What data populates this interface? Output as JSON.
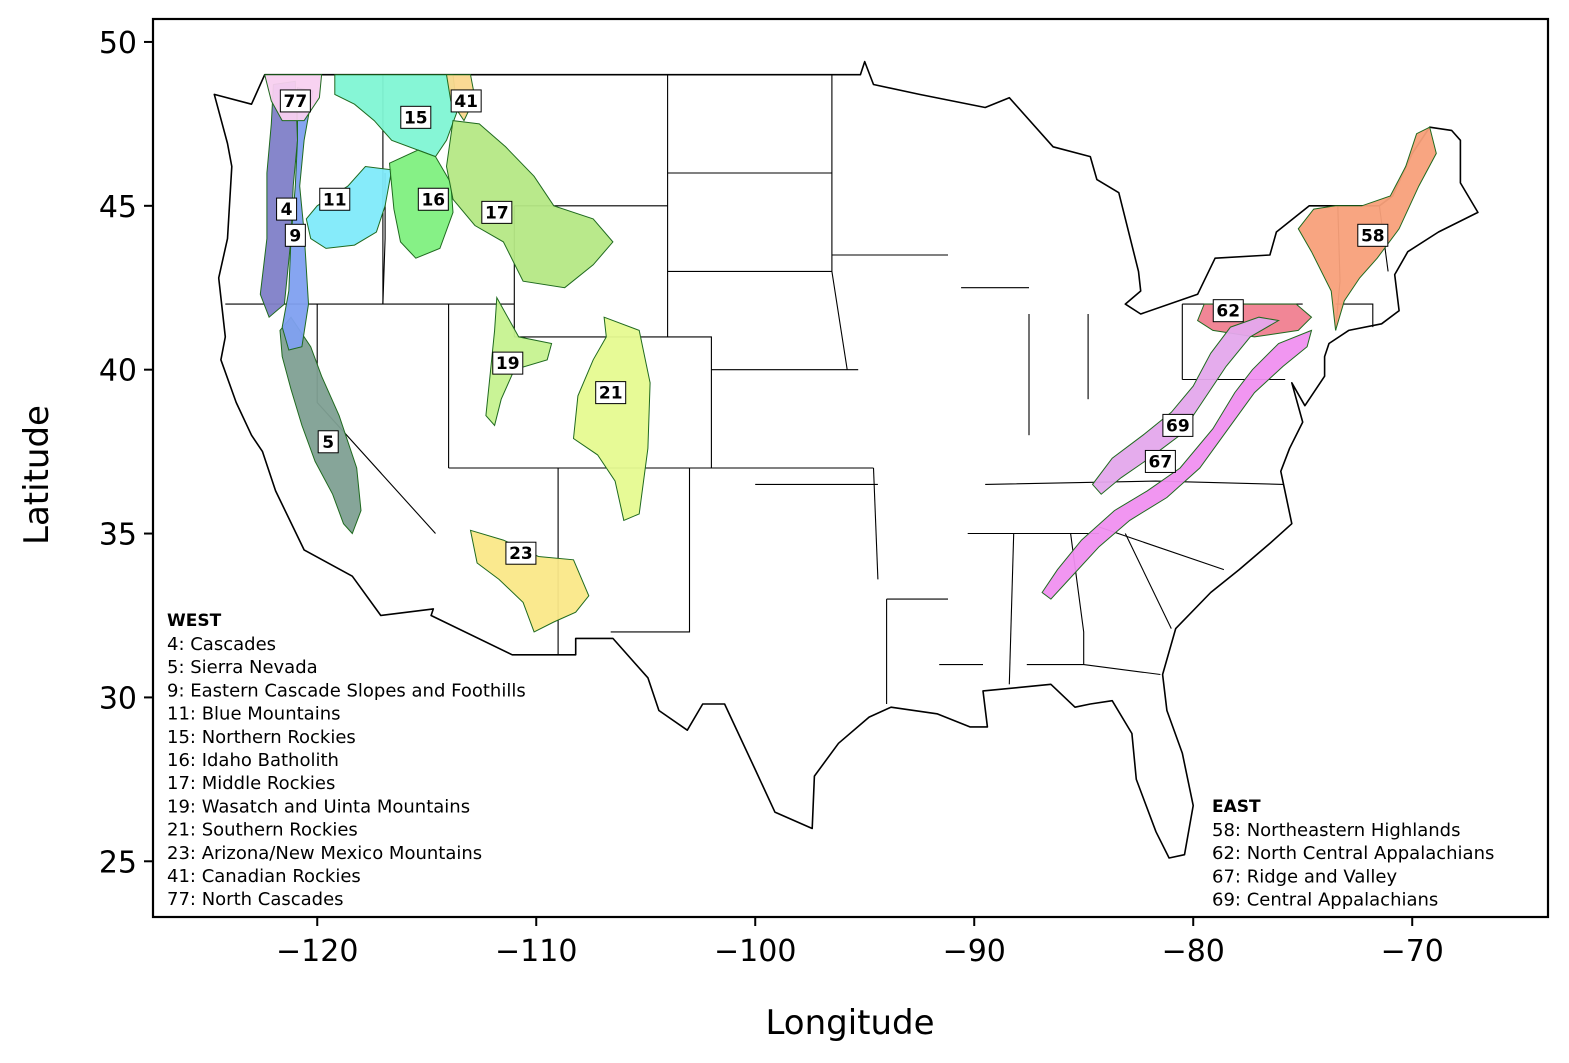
{
  "chart_data": {
    "type": "map",
    "xlabel": "Longitude",
    "ylabel": "Latitude",
    "xlim": [
      -127.5,
      -63.8
    ],
    "ylim": [
      23.3,
      50.7
    ],
    "xticks": [
      -120,
      -110,
      -100,
      -90,
      -80,
      -70
    ],
    "yticks": [
      25,
      30,
      35,
      40,
      45,
      50
    ],
    "xtick_labels": [
      "−120",
      "−110",
      "−100",
      "−90",
      "−80",
      "−70"
    ],
    "ytick_labels": [
      "25",
      "30",
      "35",
      "40",
      "45",
      "50"
    ],
    "grid": false,
    "basemap": "Continental US state boundaries with EPA Level III ecoregion outlines",
    "legend_west": {
      "heading": "WEST",
      "items": [
        "4: Cascades",
        "5: Sierra Nevada",
        "9: Eastern Cascade Slopes and Foothills",
        "11: Blue Mountains",
        "15: Northern Rockies",
        "16: Idaho Batholith",
        "17: Middle Rockies",
        "19: Wasatch and Uinta Mountains",
        "21: Southern Rockies",
        "23: Arizona/New Mexico Mountains",
        "41: Canadian Rockies",
        "77: North Cascades"
      ]
    },
    "legend_east": {
      "heading": "EAST",
      "items": [
        "58: Northeastern Highlands",
        "62: North Central Appalachians",
        "67: Ridge and Valley",
        "69: Central Appalachians"
      ]
    },
    "regions": [
      {
        "id": "4",
        "label": "4",
        "lon": -121.4,
        "lat": 44.9,
        "color": "#7f7fc8",
        "polygon": [
          [
            -122.0,
            48.7
          ],
          [
            -121.0,
            48.8
          ],
          [
            -120.9,
            47.0
          ],
          [
            -121.1,
            45.6
          ],
          [
            -121.2,
            44.0
          ],
          [
            -121.5,
            42.0
          ],
          [
            -122.2,
            41.6
          ],
          [
            -122.6,
            42.3
          ],
          [
            -122.3,
            44.0
          ],
          [
            -122.3,
            46.0
          ],
          [
            -122.1,
            47.5
          ]
        ]
      },
      {
        "id": "5",
        "label": "5",
        "lon": -119.5,
        "lat": 37.8,
        "color": "#7fa094",
        "polygon": [
          [
            -121.7,
            41.2
          ],
          [
            -121.2,
            41.6
          ],
          [
            -120.3,
            40.7
          ],
          [
            -119.8,
            39.8
          ],
          [
            -119.0,
            38.6
          ],
          [
            -118.2,
            37.0
          ],
          [
            -118.0,
            35.7
          ],
          [
            -118.4,
            35.0
          ],
          [
            -118.8,
            35.3
          ],
          [
            -119.3,
            36.2
          ],
          [
            -120.1,
            37.2
          ],
          [
            -120.7,
            38.3
          ],
          [
            -121.2,
            39.4
          ],
          [
            -121.6,
            40.4
          ]
        ]
      },
      {
        "id": "9",
        "label": "9",
        "lon": -121.0,
        "lat": 44.1,
        "color": "#7fa0f0",
        "polygon": [
          [
            -120.9,
            48.6
          ],
          [
            -120.2,
            48.5
          ],
          [
            -120.6,
            47.0
          ],
          [
            -120.8,
            45.6
          ],
          [
            -120.6,
            44.2
          ],
          [
            -120.4,
            42.0
          ],
          [
            -120.7,
            40.7
          ],
          [
            -121.3,
            40.6
          ],
          [
            -121.6,
            41.3
          ],
          [
            -121.3,
            42.4
          ],
          [
            -121.2,
            44.0
          ],
          [
            -121.0,
            45.6
          ],
          [
            -120.9,
            47.0
          ]
        ]
      },
      {
        "id": "11",
        "label": "11",
        "lon": -119.2,
        "lat": 45.2,
        "color": "#80eafa",
        "polygon": [
          [
            -120.5,
            44.6
          ],
          [
            -120.0,
            45.0
          ],
          [
            -118.6,
            45.6
          ],
          [
            -117.8,
            46.2
          ],
          [
            -116.6,
            46.1
          ],
          [
            -116.9,
            45.0
          ],
          [
            -117.3,
            44.2
          ],
          [
            -118.3,
            43.8
          ],
          [
            -119.6,
            43.7
          ],
          [
            -120.3,
            44.0
          ]
        ]
      },
      {
        "id": "15",
        "label": "15",
        "lon": -115.5,
        "lat": 47.7,
        "color": "#80f5d4",
        "polygon": [
          [
            -119.2,
            49.0
          ],
          [
            -113.8,
            49.0
          ],
          [
            -113.6,
            47.9
          ],
          [
            -114.1,
            47.0
          ],
          [
            -114.6,
            46.5
          ],
          [
            -115.4,
            46.7
          ],
          [
            -116.6,
            47.0
          ],
          [
            -117.4,
            47.6
          ],
          [
            -118.3,
            48.1
          ],
          [
            -119.2,
            48.4
          ]
        ]
      },
      {
        "id": "16",
        "label": "16",
        "lon": -114.7,
        "lat": 45.2,
        "color": "#80f080",
        "polygon": [
          [
            -116.7,
            46.3
          ],
          [
            -115.4,
            46.7
          ],
          [
            -114.6,
            46.5
          ],
          [
            -113.9,
            45.7
          ],
          [
            -113.8,
            44.8
          ],
          [
            -114.4,
            43.7
          ],
          [
            -115.5,
            43.4
          ],
          [
            -116.2,
            43.9
          ],
          [
            -116.5,
            44.9
          ]
        ]
      },
      {
        "id": "17",
        "label": "17",
        "lon": -111.8,
        "lat": 44.8,
        "color": "#b5e885",
        "polygon": [
          [
            -113.8,
            47.6
          ],
          [
            -112.6,
            47.5
          ],
          [
            -111.4,
            46.8
          ],
          [
            -110.1,
            45.9
          ],
          [
            -109.2,
            45.0
          ],
          [
            -107.4,
            44.6
          ],
          [
            -106.5,
            43.9
          ],
          [
            -107.4,
            43.2
          ],
          [
            -108.7,
            42.5
          ],
          [
            -110.6,
            42.7
          ],
          [
            -111.5,
            43.9
          ],
          [
            -112.8,
            44.4
          ],
          [
            -113.8,
            45.2
          ],
          [
            -114.1,
            46.2
          ]
        ]
      },
      {
        "id": "19",
        "label": "19",
        "lon": -111.3,
        "lat": 40.2,
        "color": "#c6f290",
        "polygon": [
          [
            -111.8,
            42.2
          ],
          [
            -110.8,
            41.0
          ],
          [
            -109.3,
            40.8
          ],
          [
            -109.5,
            40.3
          ],
          [
            -111.0,
            40.0
          ],
          [
            -111.6,
            39.1
          ],
          [
            -111.9,
            38.3
          ],
          [
            -112.3,
            38.6
          ],
          [
            -112.1,
            39.9
          ],
          [
            -111.9,
            41.2
          ]
        ]
      },
      {
        "id": "21",
        "label": "21",
        "lon": -106.6,
        "lat": 39.3,
        "color": "#e6fa90",
        "polygon": [
          [
            -106.9,
            41.6
          ],
          [
            -105.3,
            41.2
          ],
          [
            -104.8,
            39.6
          ],
          [
            -104.9,
            37.6
          ],
          [
            -105.3,
            35.6
          ],
          [
            -106.0,
            35.4
          ],
          [
            -106.4,
            36.6
          ],
          [
            -107.2,
            37.4
          ],
          [
            -108.3,
            37.9
          ],
          [
            -108.1,
            39.2
          ],
          [
            -107.4,
            40.3
          ],
          [
            -106.8,
            41.0
          ]
        ]
      },
      {
        "id": "23",
        "label": "23",
        "lon": -110.7,
        "lat": 34.4,
        "color": "#fae888",
        "polygon": [
          [
            -113.0,
            35.1
          ],
          [
            -111.5,
            34.8
          ],
          [
            -109.9,
            34.3
          ],
          [
            -108.3,
            34.2
          ],
          [
            -107.6,
            33.1
          ],
          [
            -108.2,
            32.6
          ],
          [
            -109.2,
            32.3
          ],
          [
            -110.1,
            32.0
          ],
          [
            -110.6,
            32.9
          ],
          [
            -111.7,
            33.6
          ],
          [
            -112.7,
            34.1
          ]
        ]
      },
      {
        "id": "41",
        "label": "41",
        "lon": -113.2,
        "lat": 48.2,
        "color": "#fbd88e",
        "polygon": [
          [
            -114.1,
            49.0
          ],
          [
            -113.0,
            49.0
          ],
          [
            -112.8,
            48.3
          ],
          [
            -113.3,
            47.6
          ],
          [
            -113.9,
            48.2
          ]
        ]
      },
      {
        "id": "77",
        "label": "77",
        "lon": -121.0,
        "lat": 48.2,
        "color": "#f8d0f0",
        "polygon": [
          [
            -122.4,
            49.0
          ],
          [
            -119.8,
            49.0
          ],
          [
            -119.9,
            48.3
          ],
          [
            -120.6,
            47.6
          ],
          [
            -121.6,
            47.6
          ],
          [
            -122.1,
            48.2
          ]
        ]
      },
      {
        "id": "58",
        "label": "58",
        "lon": -71.8,
        "lat": 44.1,
        "color": "#f8a07a",
        "polygon": [
          [
            -69.2,
            47.4
          ],
          [
            -68.9,
            46.6
          ],
          [
            -69.7,
            45.6
          ],
          [
            -70.6,
            44.3
          ],
          [
            -71.6,
            43.4
          ],
          [
            -72.4,
            42.8
          ],
          [
            -73.1,
            42.1
          ],
          [
            -73.5,
            41.2
          ],
          [
            -73.7,
            42.4
          ],
          [
            -74.6,
            43.6
          ],
          [
            -75.2,
            44.3
          ],
          [
            -74.5,
            44.9
          ],
          [
            -73.5,
            45.0
          ],
          [
            -72.3,
            45.0
          ],
          [
            -71.0,
            45.3
          ],
          [
            -70.3,
            46.2
          ],
          [
            -69.8,
            47.2
          ]
        ]
      },
      {
        "id": "62",
        "label": "62",
        "lon": -78.4,
        "lat": 41.8,
        "color": "#f08090",
        "polygon": [
          [
            -79.5,
            42.0
          ],
          [
            -75.3,
            42.0
          ],
          [
            -74.6,
            41.6
          ],
          [
            -75.2,
            41.2
          ],
          [
            -77.2,
            41.0
          ],
          [
            -79.1,
            41.2
          ],
          [
            -79.8,
            41.5
          ]
        ]
      },
      {
        "id": "67",
        "label": "67",
        "lon": -81.5,
        "lat": 37.2,
        "color": "#f090f0",
        "polygon": [
          [
            -74.6,
            41.2
          ],
          [
            -76.1,
            40.8
          ],
          [
            -77.3,
            40.0
          ],
          [
            -78.1,
            39.3
          ],
          [
            -79.1,
            38.2
          ],
          [
            -80.6,
            37.0
          ],
          [
            -82.1,
            36.3
          ],
          [
            -83.6,
            35.7
          ],
          [
            -85.1,
            34.8
          ],
          [
            -86.2,
            33.9
          ],
          [
            -86.9,
            33.2
          ],
          [
            -86.5,
            33.0
          ],
          [
            -85.4,
            33.8
          ],
          [
            -84.3,
            34.6
          ],
          [
            -82.9,
            35.4
          ],
          [
            -81.2,
            36.1
          ],
          [
            -79.7,
            37.0
          ],
          [
            -78.4,
            38.2
          ],
          [
            -77.2,
            39.3
          ],
          [
            -75.9,
            40.1
          ],
          [
            -74.8,
            40.7
          ]
        ]
      },
      {
        "id": "69",
        "label": "69",
        "lon": -80.7,
        "lat": 38.3,
        "color": "#e4a8ec",
        "polygon": [
          [
            -76.1,
            41.5
          ],
          [
            -77.4,
            41.0
          ],
          [
            -78.5,
            40.1
          ],
          [
            -79.4,
            39.2
          ],
          [
            -80.6,
            38.0
          ],
          [
            -82.0,
            37.3
          ],
          [
            -83.3,
            36.7
          ],
          [
            -84.2,
            36.2
          ],
          [
            -84.6,
            36.5
          ],
          [
            -83.7,
            37.3
          ],
          [
            -82.3,
            38.0
          ],
          [
            -81.0,
            38.7
          ],
          [
            -80.0,
            39.5
          ],
          [
            -79.2,
            40.5
          ],
          [
            -78.3,
            41.3
          ],
          [
            -77.0,
            41.6
          ]
        ]
      }
    ],
    "us_outline": [
      [
        -124.7,
        48.4
      ],
      [
        -123.0,
        48.1
      ],
      [
        -122.4,
        49.0
      ],
      [
        -95.2,
        49.0
      ],
      [
        -95.0,
        49.4
      ],
      [
        -94.6,
        48.7
      ],
      [
        -92.5,
        48.4
      ],
      [
        -89.5,
        48.0
      ],
      [
        -88.4,
        48.3
      ],
      [
        -86.4,
        46.8
      ],
      [
        -84.7,
        46.5
      ],
      [
        -84.4,
        45.8
      ],
      [
        -83.4,
        45.4
      ],
      [
        -82.5,
        43.0
      ],
      [
        -82.4,
        42.4
      ],
      [
        -83.1,
        42.0
      ],
      [
        -82.4,
        41.7
      ],
      [
        -79.8,
        42.3
      ],
      [
        -79.0,
        43.4
      ],
      [
        -76.5,
        43.5
      ],
      [
        -76.2,
        44.2
      ],
      [
        -74.7,
        45.0
      ],
      [
        -71.5,
        45.0
      ],
      [
        -70.9,
        45.3
      ],
      [
        -70.0,
        46.6
      ],
      [
        -69.2,
        47.4
      ],
      [
        -68.2,
        47.3
      ],
      [
        -67.8,
        47.0
      ],
      [
        -67.8,
        45.7
      ],
      [
        -67.0,
        44.8
      ],
      [
        -68.8,
        44.2
      ],
      [
        -70.2,
        43.6
      ],
      [
        -70.8,
        42.9
      ],
      [
        -70.6,
        41.8
      ],
      [
        -71.4,
        41.4
      ],
      [
        -72.9,
        41.2
      ],
      [
        -73.8,
        40.8
      ],
      [
        -74.0,
        40.4
      ],
      [
        -74.0,
        39.8
      ],
      [
        -74.9,
        38.9
      ],
      [
        -75.5,
        39.6
      ],
      [
        -75.0,
        38.4
      ],
      [
        -75.6,
        37.6
      ],
      [
        -76.0,
        36.9
      ],
      [
        -75.5,
        35.3
      ],
      [
        -76.5,
        34.7
      ],
      [
        -77.9,
        33.9
      ],
      [
        -79.2,
        33.2
      ],
      [
        -80.8,
        32.1
      ],
      [
        -81.4,
        30.7
      ],
      [
        -81.2,
        29.6
      ],
      [
        -80.5,
        28.3
      ],
      [
        -80.0,
        26.7
      ],
      [
        -80.4,
        25.2
      ],
      [
        -81.1,
        25.1
      ],
      [
        -81.7,
        25.9
      ],
      [
        -82.6,
        27.5
      ],
      [
        -82.8,
        28.9
      ],
      [
        -83.7,
        29.9
      ],
      [
        -84.7,
        29.8
      ],
      [
        -85.4,
        29.7
      ],
      [
        -86.5,
        30.4
      ],
      [
        -88.0,
        30.3
      ],
      [
        -89.6,
        30.2
      ],
      [
        -89.4,
        29.1
      ],
      [
        -90.2,
        29.1
      ],
      [
        -91.7,
        29.5
      ],
      [
        -93.8,
        29.7
      ],
      [
        -94.8,
        29.4
      ],
      [
        -96.2,
        28.6
      ],
      [
        -97.3,
        27.6
      ],
      [
        -97.4,
        26.0
      ],
      [
        -99.1,
        26.5
      ],
      [
        -100.0,
        27.8
      ],
      [
        -101.4,
        29.8
      ],
      [
        -102.4,
        29.8
      ],
      [
        -103.1,
        29.0
      ],
      [
        -104.4,
        29.6
      ],
      [
        -104.9,
        30.6
      ],
      [
        -106.5,
        31.8
      ],
      [
        -108.2,
        31.8
      ],
      [
        -108.2,
        31.3
      ],
      [
        -111.1,
        31.3
      ],
      [
        -114.8,
        32.5
      ],
      [
        -114.7,
        32.7
      ],
      [
        -117.1,
        32.5
      ],
      [
        -118.4,
        33.7
      ],
      [
        -120.6,
        34.5
      ],
      [
        -121.9,
        36.3
      ],
      [
        -122.5,
        37.5
      ],
      [
        -123.0,
        38.0
      ],
      [
        -123.7,
        39.0
      ],
      [
        -124.4,
        40.3
      ],
      [
        -124.2,
        41.0
      ],
      [
        -124.5,
        42.8
      ],
      [
        -124.1,
        44.0
      ],
      [
        -123.9,
        46.2
      ],
      [
        -124.1,
        46.9
      ],
      [
        -124.7,
        48.4
      ]
    ]
  }
}
